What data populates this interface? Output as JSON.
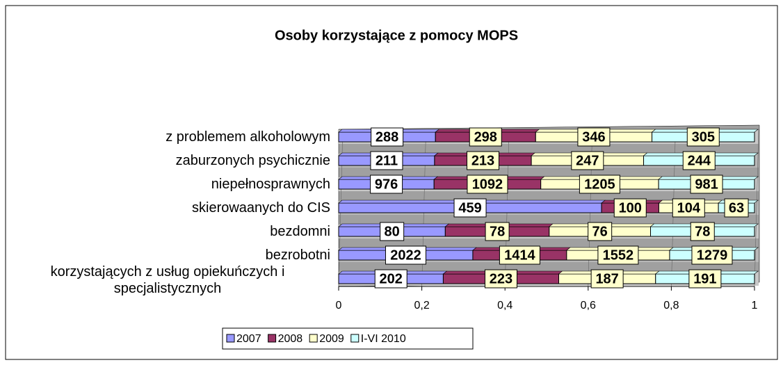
{
  "chart_data": {
    "type": "stacked-bar-100",
    "title": "Osoby korzystające z pomocy MOPS",
    "categories": [
      "z problemem alkoholowym",
      "zaburzonych psychicznie",
      "niepełnosprawnych",
      "skierowaanych do CIS",
      "bezdomni",
      "bezrobotni",
      "korzystających z usług opiekuńczych i specjalistycznych"
    ],
    "series": [
      {
        "name": "2007",
        "color": "#9999ff",
        "values": [
          288,
          211,
          976,
          459,
          80,
          2022,
          202
        ]
      },
      {
        "name": "2008",
        "color": "#993366",
        "values": [
          298,
          213,
          1092,
          100,
          78,
          1414,
          223
        ]
      },
      {
        "name": "2009",
        "color": "#ffffcc",
        "values": [
          346,
          247,
          1205,
          104,
          76,
          1552,
          187
        ]
      },
      {
        "name": "I-VI 2010",
        "color": "#ccffff",
        "values": [
          305,
          244,
          981,
          63,
          78,
          1279,
          191
        ]
      }
    ],
    "xlim": [
      0,
      1
    ],
    "xticks": [
      0,
      {
        "value": 0.2,
        "label": "0,2"
      },
      {
        "value": 0.4,
        "label": "0,4"
      },
      {
        "value": 0.6,
        "label": "0,6"
      },
      {
        "value": 0.8,
        "label": "0,8"
      },
      1
    ],
    "legend": "bottom"
  }
}
